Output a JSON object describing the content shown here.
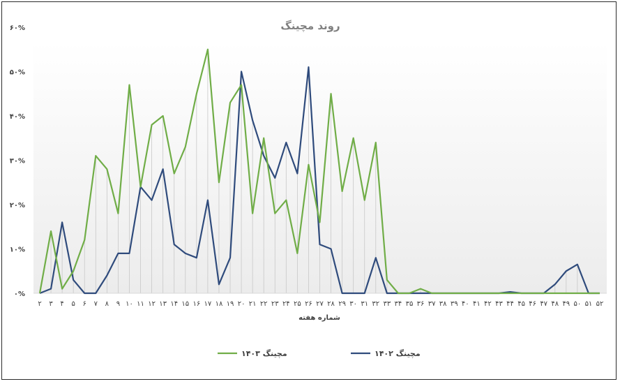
{
  "chart_data": {
    "type": "line",
    "title": "روند مچینگ",
    "xlabel": "شماره هفته",
    "ylabel": "",
    "ylim": [
      0,
      60
    ],
    "yticks": [
      0,
      10,
      20,
      30,
      40,
      50,
      60
    ],
    "ytick_labels": [
      "۰%",
      "۱۰%",
      "۲۰%",
      "۳۰%",
      "۴۰%",
      "۵۰%",
      "۶۰%"
    ],
    "grid": "vertical drop lines",
    "legend_position": "bottom",
    "categories": [
      "۲",
      "۳",
      "۴",
      "۵",
      "۶",
      "۷",
      "۸",
      "۹",
      "۱۰",
      "۱۱",
      "۱۲",
      "۱۳",
      "۱۴",
      "۱۵",
      "۱۶",
      "۱۷",
      "۱۸",
      "۱۹",
      "۲۰",
      "۲۱",
      "۲۲",
      "۲۳",
      "۲۴",
      "۲۵",
      "۲۶",
      "۲۷",
      "۲۸",
      "۲۹",
      "۳۰",
      "۳۱",
      "۳۲",
      "۳۳",
      "۳۴",
      "۳۵",
      "۳۶",
      "۳۷",
      "۳۸",
      "۳۹",
      "۴۰",
      "۴۱",
      "۴۲",
      "۴۳",
      "۴۴",
      "۴۵",
      "۴۶",
      "۴۷",
      "۴۸",
      "۴۹",
      "۵۰",
      "۵۱",
      "۵۲"
    ],
    "series": [
      {
        "name": "مچینگ ۱۴۰۳",
        "color": "#70ad47",
        "values": [
          0,
          14,
          1,
          5,
          12,
          31,
          28,
          18,
          47,
          24,
          38,
          40,
          27,
          33,
          45,
          55,
          25,
          43,
          47,
          18,
          35,
          18,
          21,
          9,
          29,
          16,
          45,
          23,
          35,
          21,
          34,
          3,
          0,
          0,
          1,
          0,
          0,
          0,
          0,
          0,
          0,
          0,
          0,
          0,
          0,
          0,
          0,
          0,
          0,
          0,
          0
        ]
      },
      {
        "name": "مچینگ ۱۴۰۲",
        "color": "#2f4b7c",
        "values": [
          0,
          1,
          16,
          3,
          0,
          0,
          4,
          9,
          9,
          24,
          21,
          28,
          11,
          9,
          8,
          21,
          2,
          8,
          50,
          39,
          31,
          26,
          34,
          27,
          51,
          11,
          10,
          0,
          0,
          0,
          8,
          0,
          0,
          0,
          0,
          0,
          0,
          0,
          0,
          0,
          0,
          0,
          0.3,
          0,
          0,
          0,
          2,
          5,
          6.5,
          0,
          0
        ]
      }
    ]
  }
}
